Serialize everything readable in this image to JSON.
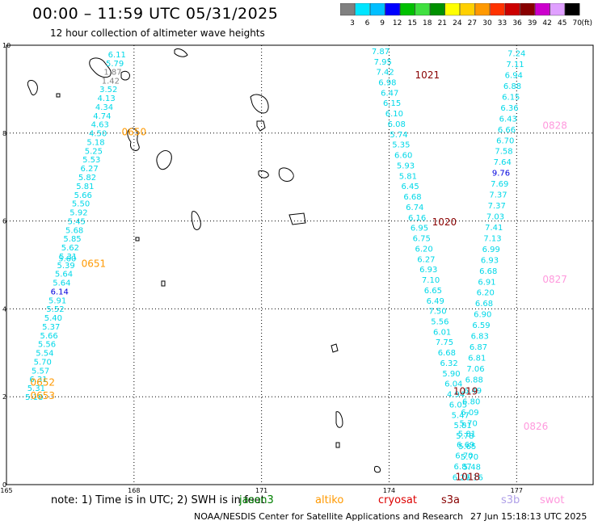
{
  "title": "00:00 – 11:59 UTC 05/31/2025",
  "subtitle": "12 hour collection of altimeter wave heights",
  "colorbar": {
    "unit": "(ft)",
    "ticks": [
      "3",
      "6",
      "9",
      "12",
      "15",
      "18",
      "21",
      "24",
      "27",
      "30",
      "33",
      "36",
      "39",
      "42",
      "45",
      "70"
    ],
    "colors": [
      "#808080",
      "#00e5ff",
      "#00bfff",
      "#0000ff",
      "#00c000",
      "#40e040",
      "#009000",
      "#ffff00",
      "#ffd000",
      "#ff9900",
      "#ff3300",
      "#cc0000",
      "#880000",
      "#cc00cc",
      "#e0a0ff",
      "#000000"
    ]
  },
  "axes": {
    "x_ticks": [
      {
        "v": 165,
        "label": "165"
      },
      {
        "v": 168,
        "label": "168"
      },
      {
        "v": 171,
        "label": "171"
      },
      {
        "v": 174,
        "label": "174"
      },
      {
        "v": 177,
        "label": "177"
      }
    ],
    "y_ticks": [
      {
        "v": 0,
        "label": "0"
      },
      {
        "v": 2,
        "label": "2"
      },
      {
        "v": 4,
        "label": "4"
      },
      {
        "v": 6,
        "label": "6"
      },
      {
        "v": 8,
        "label": "8"
      },
      {
        "v": 10,
        "label": "10"
      }
    ],
    "xlim": [
      165,
      178.8
    ],
    "ylim": [
      0,
      10
    ]
  },
  "note": {
    "text": "note:  1) Time is in UTC;  2) SWH is in feet",
    "satellites": [
      {
        "name": "jason3",
        "color": "#008000"
      },
      {
        "name": "altiko",
        "color": "#ff9900"
      },
      {
        "name": "cryosat",
        "color": "#dd0000"
      },
      {
        "name": "s3a",
        "color": "#880000"
      },
      {
        "name": "s3b",
        "color": "#b0a0e8"
      },
      {
        "name": "swot",
        "color": "#ff99dd"
      }
    ]
  },
  "credit": "NOAA/NESDIS Center for Satellite Applications and Research",
  "timestamp": "27 Jun 15:18:13 UTC 2025",
  "chart_data": {
    "type": "scatter",
    "xlabel": "",
    "ylabel": "",
    "unit": "ft",
    "tracks": [
      {
        "id": "track-a",
        "points": [
          {
            "lon": 167.6,
            "lat": 9.72,
            "v": "6.11",
            "c": "#00d8e8"
          },
          {
            "lon": 167.55,
            "lat": 9.52,
            "v": "5.79",
            "c": "#00d8e8"
          },
          {
            "lon": 167.5,
            "lat": 9.33,
            "v": "1.87",
            "c": "#808080"
          },
          {
            "lon": 167.45,
            "lat": 9.13,
            "v": "1.42",
            "c": "#808080"
          },
          {
            "lon": 167.4,
            "lat": 8.93,
            "v": "3.52",
            "c": "#00d8e8"
          },
          {
            "lon": 167.35,
            "lat": 8.73,
            "v": "4.13",
            "c": "#00d8e8"
          },
          {
            "lon": 167.3,
            "lat": 8.53,
            "v": "4.34",
            "c": "#00d8e8"
          },
          {
            "lon": 167.25,
            "lat": 8.33,
            "v": "4.74",
            "c": "#00d8e8"
          },
          {
            "lon": 167.2,
            "lat": 8.13,
            "v": "4.63",
            "c": "#00d8e8"
          },
          {
            "lon": 167.15,
            "lat": 7.93,
            "v": "4.50",
            "c": "#00d8e8"
          },
          {
            "lon": 167.1,
            "lat": 7.73,
            "v": "5.18",
            "c": "#00d8e8"
          },
          {
            "lon": 167.05,
            "lat": 7.53,
            "v": "5.25",
            "c": "#00d8e8"
          },
          {
            "lon": 167.0,
            "lat": 7.33,
            "v": "5.53",
            "c": "#00d8e8"
          },
          {
            "lon": 166.95,
            "lat": 7.13,
            "v": "6.27",
            "c": "#00d8e8"
          },
          {
            "lon": 166.9,
            "lat": 6.93,
            "v": "5.82",
            "c": "#00d8e8"
          },
          {
            "lon": 166.85,
            "lat": 6.73,
            "v": "5.81",
            "c": "#00d8e8"
          },
          {
            "lon": 166.8,
            "lat": 6.53,
            "v": "5.66",
            "c": "#00d8e8"
          },
          {
            "lon": 166.75,
            "lat": 6.33,
            "v": "5.50",
            "c": "#00d8e8"
          },
          {
            "lon": 166.7,
            "lat": 6.13,
            "v": "5.92",
            "c": "#00d8e8"
          },
          {
            "lon": 166.65,
            "lat": 5.93,
            "v": "5.45",
            "c": "#00d8e8"
          },
          {
            "lon": 166.6,
            "lat": 5.73,
            "v": "5.68",
            "c": "#00d8e8"
          },
          {
            "lon": 166.55,
            "lat": 5.53,
            "v": "5.85",
            "c": "#00d8e8"
          },
          {
            "lon": 166.5,
            "lat": 5.33,
            "v": "5.62",
            "c": "#00d8e8"
          },
          {
            "lon": 166.45,
            "lat": 5.13,
            "v": "5.31",
            "c": "#00d8e8"
          },
          {
            "lon": 166.43,
            "lat": 5.08,
            "v": "5.60",
            "c": "#00d8e8"
          },
          {
            "lon": 166.4,
            "lat": 4.93,
            "v": "5.39",
            "c": "#00d8e8"
          },
          {
            "lon": 166.35,
            "lat": 4.73,
            "v": "5.64",
            "c": "#00d8e8"
          },
          {
            "lon": 166.3,
            "lat": 4.53,
            "v": "5.64",
            "c": "#00d8e8"
          },
          {
            "lon": 166.25,
            "lat": 4.33,
            "v": "6.14",
            "c": "#0000dd"
          },
          {
            "lon": 166.2,
            "lat": 4.13,
            "v": "5.91",
            "c": "#00d8e8"
          },
          {
            "lon": 166.15,
            "lat": 3.93,
            "v": "5.52",
            "c": "#00d8e8"
          },
          {
            "lon": 166.1,
            "lat": 3.73,
            "v": "5.40",
            "c": "#00d8e8"
          },
          {
            "lon": 166.05,
            "lat": 3.53,
            "v": "5.37",
            "c": "#00d8e8"
          },
          {
            "lon": 166.0,
            "lat": 3.33,
            "v": "5.66",
            "c": "#00d8e8"
          },
          {
            "lon": 165.95,
            "lat": 3.13,
            "v": "5.56",
            "c": "#00d8e8"
          },
          {
            "lon": 165.9,
            "lat": 2.93,
            "v": "5.54",
            "c": "#00d8e8"
          },
          {
            "lon": 165.85,
            "lat": 2.73,
            "v": "5.70",
            "c": "#00d8e8"
          },
          {
            "lon": 165.8,
            "lat": 2.53,
            "v": "5.57",
            "c": "#00d8e8"
          },
          {
            "lon": 165.75,
            "lat": 2.33,
            "v": "6.31",
            "c": "#00d8e8"
          },
          {
            "lon": 165.7,
            "lat": 2.13,
            "v": "5.31",
            "c": "#00d8e8"
          },
          {
            "lon": 165.65,
            "lat": 1.93,
            "v": "5.18",
            "c": "#00d8e8"
          }
        ]
      }
    ],
    "time_labels": [
      {
        "lon": 168.0,
        "lat": 7.95,
        "text": "0650",
        "c": "#ff9900"
      },
      {
        "lon": 167.05,
        "lat": 4.95,
        "text": "0651",
        "c": "#ff9900"
      },
      {
        "lon": 165.85,
        "lat": 2.25,
        "text": "0652",
        "c": "#ff9900"
      },
      {
        "lon": 165.85,
        "lat": 1.95,
        "text": "0653",
        "c": "#ff9900"
      },
      {
        "lon": 174.9,
        "lat": 9.25,
        "text": "1021",
        "c": "#880000"
      },
      {
        "lon": 175.3,
        "lat": 5.9,
        "text": "1020",
        "c": "#880000"
      },
      {
        "lon": 175.8,
        "lat": 2.05,
        "text": "1019",
        "c": "#880000"
      },
      {
        "lon": 175.85,
        "lat": 0.1,
        "text": "1018",
        "c": "#880000"
      },
      {
        "lon": 177.9,
        "lat": 8.1,
        "text": "0828",
        "c": "#ff99dd"
      },
      {
        "lon": 177.9,
        "lat": 4.6,
        "text": "0827",
        "c": "#ff99dd"
      },
      {
        "lon": 177.45,
        "lat": 1.25,
        "text": "0826",
        "c": "#ff99dd"
      }
    ]
  }
}
